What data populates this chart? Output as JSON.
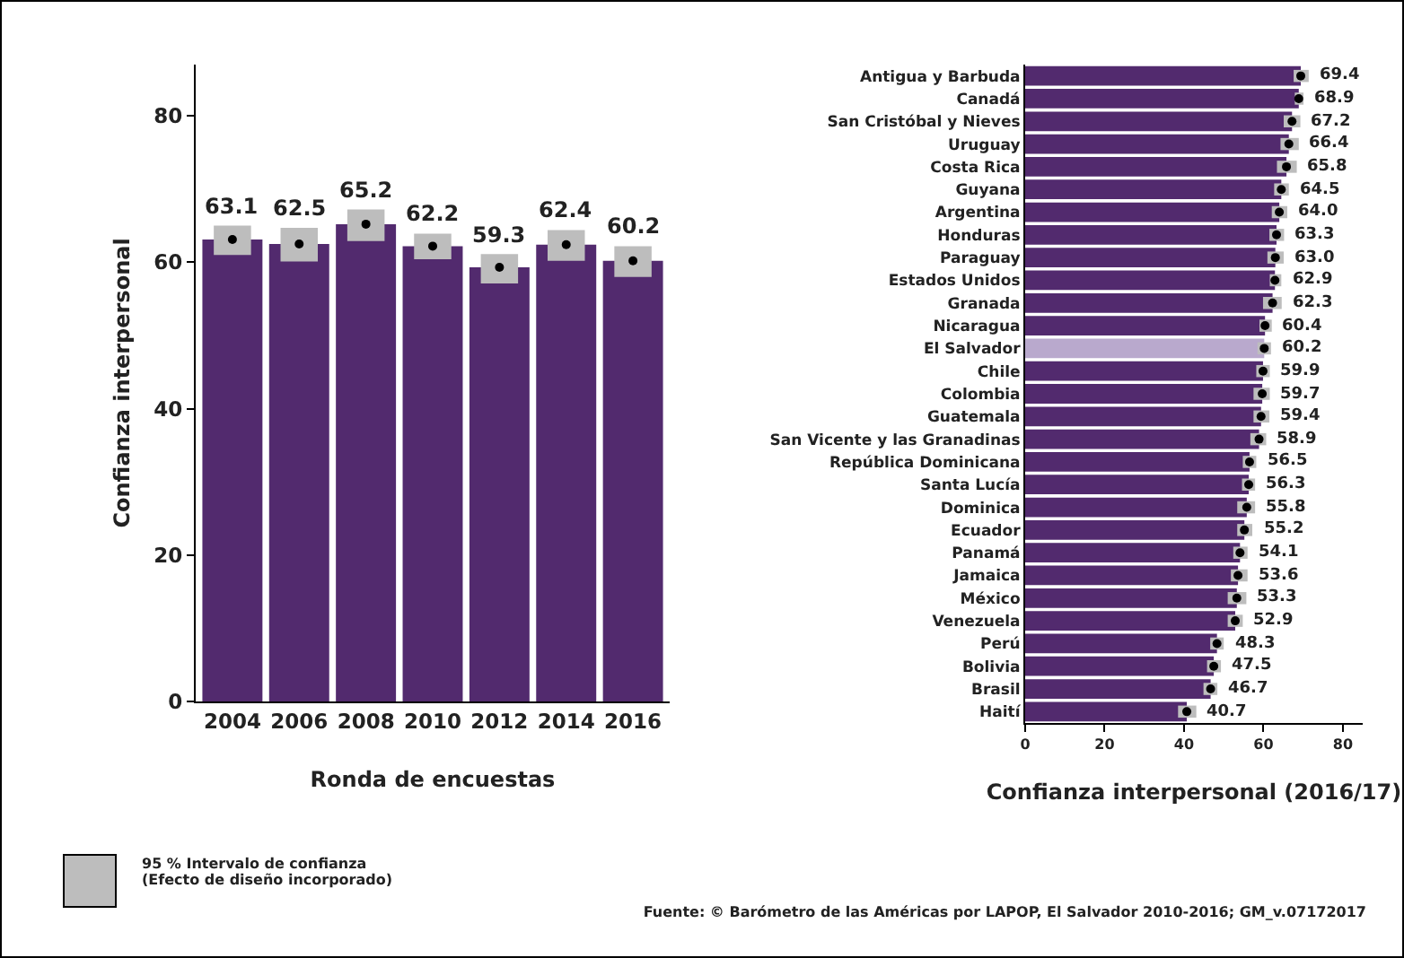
{
  "chart_data": [
    {
      "type": "bar",
      "categories": [
        "2004",
        "2006",
        "2008",
        "2010",
        "2012",
        "2014",
        "2016"
      ],
      "series": [
        {
          "color": "#522a6e",
          "values": [
            63.1,
            62.5,
            65.2,
            62.2,
            59.3,
            62.4,
            60.2
          ],
          "value_labels": [
            "63.1",
            "62.5",
            "65.2",
            "62.2",
            "59.3",
            "62.4",
            "60.2"
          ],
          "errors": [
            [
              61.0,
              65.0
            ],
            [
              60.1,
              64.7
            ],
            [
              62.9,
              67.2
            ],
            [
              60.4,
              63.9
            ],
            [
              57.1,
              61.1
            ],
            [
              60.2,
              64.4
            ],
            [
              58.0,
              62.2
            ]
          ]
        },
        {
          "type": "scatter",
          "color": "#000000",
          "values": [
            63.1,
            62.5,
            65.2,
            62.2,
            59.3,
            62.4,
            60.2
          ]
        }
      ],
      "ylim": [
        0,
        87
      ],
      "yticks": [
        0,
        20,
        40,
        60,
        80
      ],
      "ylabel": "Confianza interpersonal",
      "xlabel": "Ronda de encuestas",
      "marker": "circle",
      "grid": false,
      "annotations": [
        "95 % Intervalo de confianza\n(Efecto de diseño incorporado)"
      ]
    },
    {
      "type": "bar",
      "orientation": "horizontal",
      "categories": [
        "Antigua y Barbuda",
        "Canadá",
        "San Cristóbal y Nieves",
        "Uruguay",
        "Costa Rica",
        "Guyana",
        "Argentina",
        "Honduras",
        "Paraguay",
        "Estados Unidos",
        "Granada",
        "Nicaragua",
        "El Salvador",
        "Chile",
        "Colombia",
        "Guatemala",
        "San Vicente y las Granadinas",
        "República Dominicana",
        "Santa Lucía",
        "Dominica",
        "Ecuador",
        "Panamá",
        "Jamaica",
        "México",
        "Venezuela",
        "Perú",
        "Bolivia",
        "Brasil",
        "Haití"
      ],
      "series": [
        {
          "colors": [
            "#522a6e",
            "#522a6e",
            "#522a6e",
            "#522a6e",
            "#522a6e",
            "#522a6e",
            "#522a6e",
            "#522a6e",
            "#522a6e",
            "#522a6e",
            "#522a6e",
            "#522a6e",
            "#b9a9cd",
            "#522a6e",
            "#522a6e",
            "#522a6e",
            "#522a6e",
            "#522a6e",
            "#522a6e",
            "#522a6e",
            "#522a6e",
            "#522a6e",
            "#522a6e",
            "#522a6e",
            "#522a6e",
            "#522a6e",
            "#522a6e",
            "#522a6e",
            "#522a6e"
          ],
          "values": [
            69.4,
            68.9,
            67.2,
            66.4,
            65.8,
            64.5,
            64.0,
            63.3,
            63.0,
            62.9,
            62.3,
            60.4,
            60.2,
            59.9,
            59.7,
            59.4,
            58.9,
            56.5,
            56.3,
            55.8,
            55.2,
            54.1,
            53.6,
            53.3,
            52.9,
            48.3,
            47.5,
            46.7,
            40.7
          ],
          "value_labels": [
            "69.4",
            "68.9",
            "67.2",
            "66.4",
            "65.8",
            "64.5",
            "64.0",
            "63.3",
            "63.0",
            "62.9",
            "62.3",
            "60.4",
            "60.2",
            "59.9",
            "59.7",
            "59.4",
            "58.9",
            "56.5",
            "56.3",
            "55.8",
            "55.2",
            "54.1",
            "53.6",
            "53.3",
            "52.9",
            "48.3",
            "47.5",
            "46.7",
            "40.7"
          ],
          "errors": [
            [
              67.6,
              71.4
            ],
            [
              67.9,
              70.1
            ],
            [
              65.1,
              69.3
            ],
            [
              64.3,
              68.9
            ],
            [
              63.4,
              68.4
            ],
            [
              62.7,
              66.4
            ],
            [
              62.1,
              66.0
            ],
            [
              61.5,
              65.2
            ],
            [
              61.0,
              65.1
            ],
            [
              61.6,
              64.5
            ],
            [
              59.9,
              64.6
            ],
            [
              59.0,
              62.1
            ],
            [
              58.5,
              61.9
            ],
            [
              58.2,
              61.6
            ],
            [
              57.5,
              61.6
            ],
            [
              57.5,
              61.5
            ],
            [
              56.7,
              60.7
            ],
            [
              54.8,
              58.2
            ],
            [
              54.6,
              57.9
            ],
            [
              53.4,
              57.9
            ],
            [
              53.4,
              57.2
            ],
            [
              52.4,
              56.0
            ],
            [
              51.8,
              56.0
            ],
            [
              51.0,
              55.7
            ],
            [
              51.0,
              54.8
            ],
            [
              46.6,
              50.0
            ],
            [
              45.8,
              49.3
            ],
            [
              44.9,
              48.4
            ],
            [
              38.5,
              43.1
            ]
          ]
        },
        {
          "type": "scatter",
          "color": "#000000",
          "values": [
            69.4,
            68.9,
            67.2,
            66.4,
            65.8,
            64.5,
            64.0,
            63.3,
            63.0,
            62.9,
            62.3,
            60.4,
            60.2,
            59.9,
            59.7,
            59.4,
            58.9,
            56.5,
            56.3,
            55.8,
            55.2,
            54.1,
            53.6,
            53.3,
            52.9,
            48.3,
            47.5,
            46.7,
            40.7
          ]
        }
      ],
      "xlim": [
        0,
        85
      ],
      "xticks": [
        0,
        20,
        40,
        60,
        80
      ],
      "xlabel": "Confianza interpersonal (2016/17)",
      "marker": "circle",
      "grid": false,
      "annotations": [
        "Fuente: © Barómetro de las Américas por LAPOP, El Salvador 2010-2016; GM_v.07172017"
      ]
    }
  ]
}
